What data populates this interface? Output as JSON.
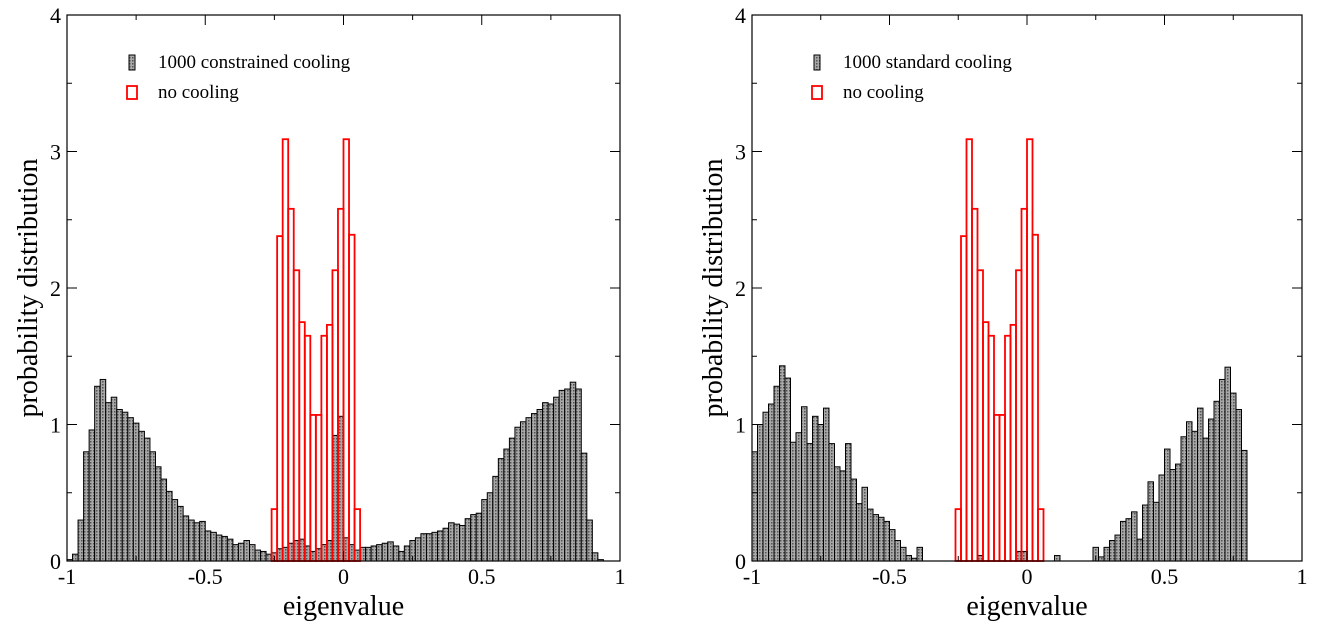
{
  "colors": {
    "cooled_fill": "#8c8c8c",
    "cooled_stroke": "#000000",
    "nocool_stroke": "#ff0000",
    "axis": "#000000"
  },
  "chart_data": [
    {
      "type": "bar",
      "xlabel": "eigenvalue",
      "ylabel": "probability distribution",
      "xlim": [
        -1,
        1
      ],
      "ylim": [
        0,
        4
      ],
      "xticks": [
        -1,
        -0.5,
        0,
        0.5,
        1
      ],
      "xtick_labels": [
        "-1",
        "-0.5",
        "0",
        "0.5",
        "1"
      ],
      "yticks": [
        0,
        1,
        2,
        3,
        4
      ],
      "ytick_labels": [
        "0",
        "1",
        "2",
        "3",
        "4"
      ],
      "bin_width": 0.02,
      "legend_position": "top-left",
      "series": [
        {
          "name": "1000  constrained cooling",
          "style": "filled",
          "x": [
            -0.99,
            -0.97,
            -0.95,
            -0.93,
            -0.91,
            -0.89,
            -0.87,
            -0.85,
            -0.83,
            -0.81,
            -0.79,
            -0.77,
            -0.75,
            -0.73,
            -0.71,
            -0.69,
            -0.67,
            -0.65,
            -0.63,
            -0.61,
            -0.59,
            -0.57,
            -0.55,
            -0.53,
            -0.51,
            -0.49,
            -0.47,
            -0.45,
            -0.43,
            -0.41,
            -0.39,
            -0.37,
            -0.35,
            -0.33,
            -0.31,
            -0.29,
            -0.27,
            -0.25,
            -0.23,
            -0.21,
            -0.19,
            -0.17,
            -0.15,
            -0.13,
            -0.11,
            -0.09,
            -0.07,
            -0.05,
            -0.03,
            -0.01,
            0.01,
            0.03,
            0.05,
            0.07,
            0.09,
            0.11,
            0.13,
            0.15,
            0.17,
            0.19,
            0.21,
            0.23,
            0.25,
            0.27,
            0.29,
            0.31,
            0.33,
            0.35,
            0.37,
            0.39,
            0.41,
            0.43,
            0.45,
            0.47,
            0.49,
            0.51,
            0.53,
            0.55,
            0.57,
            0.59,
            0.61,
            0.63,
            0.65,
            0.67,
            0.69,
            0.71,
            0.73,
            0.75,
            0.77,
            0.79,
            0.81,
            0.83,
            0.85,
            0.87,
            0.89,
            0.91,
            0.93,
            0.95,
            0.97,
            0.99
          ],
          "values": [
            0.01,
            0.05,
            0.3,
            0.8,
            0.96,
            1.28,
            1.33,
            1.16,
            1.2,
            1.11,
            1.09,
            1.05,
            1.01,
            0.95,
            0.9,
            0.8,
            0.69,
            0.6,
            0.51,
            0.45,
            0.4,
            0.33,
            0.3,
            0.28,
            0.29,
            0.22,
            0.21,
            0.19,
            0.18,
            0.16,
            0.12,
            0.13,
            0.15,
            0.12,
            0.08,
            0.07,
            0.05,
            0.06,
            0.09,
            0.1,
            0.13,
            0.15,
            0.16,
            0.11,
            0.07,
            0.09,
            0.12,
            0.15,
            0.92,
            1.06,
            0.17,
            0.12,
            0.08,
            0.1,
            0.1,
            0.11,
            0.12,
            0.13,
            0.14,
            0.11,
            0.07,
            0.11,
            0.15,
            0.17,
            0.2,
            0.2,
            0.21,
            0.22,
            0.24,
            0.28,
            0.27,
            0.26,
            0.31,
            0.34,
            0.35,
            0.45,
            0.5,
            0.62,
            0.75,
            0.82,
            0.9,
            0.98,
            1.02,
            1.05,
            1.08,
            1.11,
            1.16,
            1.15,
            1.2,
            1.25,
            1.26,
            1.31,
            1.26,
            0.79,
            0.3,
            0.06,
            0.01,
            0.0,
            0.0,
            0.0
          ]
        },
        {
          "name": "no cooling",
          "style": "outline",
          "x": [
            -0.27,
            -0.25,
            -0.23,
            -0.21,
            -0.19,
            -0.17,
            -0.15,
            -0.13,
            -0.11,
            -0.09,
            -0.07,
            -0.05,
            -0.03,
            -0.01,
            0.01,
            0.03,
            0.05,
            0.07,
            0.09,
            0.11,
            0.13,
            0.15,
            0.17,
            0.19,
            0.21,
            0.23,
            0.25,
            0.27
          ],
          "values": [
            0.0,
            0.38,
            2.38,
            3.09,
            2.58,
            2.13,
            1.75,
            1.65,
            1.07,
            1.07,
            1.65,
            1.73,
            2.13,
            2.58,
            3.09,
            2.39,
            0.38,
            0.0,
            0.0,
            0.0,
            0.0,
            0.0,
            0.0,
            0.0,
            0.0,
            0.0,
            0.0,
            0.0
          ]
        }
      ]
    },
    {
      "type": "bar",
      "xlabel": "eigenvalue",
      "ylabel": "probability distribution",
      "xlim": [
        -1,
        1
      ],
      "ylim": [
        0,
        4
      ],
      "xticks": [
        -1,
        -0.5,
        0,
        0.5,
        1
      ],
      "xtick_labels": [
        "-1",
        "-0.5",
        "0",
        "0.5",
        "1"
      ],
      "yticks": [
        0,
        1,
        2,
        3,
        4
      ],
      "ytick_labels": [
        "0",
        "1",
        "2",
        "3",
        "4"
      ],
      "bin_width": 0.02,
      "legend_position": "top-left",
      "series": [
        {
          "name": "1000  standard cooling",
          "style": "filled",
          "x": [
            -0.99,
            -0.97,
            -0.95,
            -0.93,
            -0.91,
            -0.89,
            -0.87,
            -0.85,
            -0.83,
            -0.81,
            -0.79,
            -0.77,
            -0.75,
            -0.73,
            -0.71,
            -0.69,
            -0.67,
            -0.65,
            -0.63,
            -0.61,
            -0.59,
            -0.57,
            -0.55,
            -0.53,
            -0.51,
            -0.49,
            -0.47,
            -0.45,
            -0.43,
            -0.41,
            -0.39,
            -0.37,
            -0.35,
            -0.33,
            -0.31,
            -0.29,
            -0.27,
            -0.25,
            -0.23,
            -0.21,
            -0.19,
            -0.17,
            -0.15,
            -0.13,
            -0.11,
            -0.09,
            -0.07,
            -0.05,
            -0.03,
            -0.01,
            0.01,
            0.03,
            0.05,
            0.07,
            0.09,
            0.11,
            0.13,
            0.15,
            0.17,
            0.19,
            0.21,
            0.23,
            0.25,
            0.27,
            0.29,
            0.31,
            0.33,
            0.35,
            0.37,
            0.39,
            0.41,
            0.43,
            0.45,
            0.47,
            0.49,
            0.51,
            0.53,
            0.55,
            0.57,
            0.59,
            0.61,
            0.63,
            0.65,
            0.67,
            0.69,
            0.71,
            0.73,
            0.75,
            0.77,
            0.79,
            0.81,
            0.83,
            0.85,
            0.87,
            0.89,
            0.91,
            0.93,
            0.95,
            0.97,
            0.99
          ],
          "values": [
            0.8,
            1.0,
            1.09,
            1.15,
            1.28,
            1.43,
            1.34,
            0.87,
            0.94,
            1.13,
            0.86,
            1.06,
            1.0,
            1.12,
            0.86,
            0.69,
            0.66,
            0.86,
            0.6,
            0.42,
            0.54,
            0.38,
            0.34,
            0.32,
            0.29,
            0.23,
            0.15,
            0.1,
            0.04,
            0.02,
            0.1,
            0.0,
            0.0,
            0.0,
            0.0,
            0.0,
            0.0,
            0.0,
            0.0,
            0.0,
            0.0,
            0.04,
            0.0,
            0.0,
            0.0,
            0.0,
            0.0,
            0.0,
            0.07,
            0.07,
            0.0,
            0.0,
            0.0,
            0.0,
            0.0,
            0.04,
            0.0,
            0.0,
            0.0,
            0.0,
            0.0,
            0.0,
            0.1,
            0.03,
            0.1,
            0.15,
            0.19,
            0.29,
            0.31,
            0.36,
            0.16,
            0.41,
            0.58,
            0.43,
            0.63,
            0.82,
            0.67,
            0.71,
            0.91,
            1.02,
            0.95,
            1.12,
            0.9,
            1.04,
            1.17,
            1.33,
            1.42,
            1.23,
            1.11,
            0.81,
            0.0,
            0.0,
            0.0,
            0.0,
            0.0,
            0.0,
            0.0,
            0.0,
            0.0,
            0.0
          ]
        },
        {
          "name": "no cooling",
          "style": "outline",
          "x": [
            -0.27,
            -0.25,
            -0.23,
            -0.21,
            -0.19,
            -0.17,
            -0.15,
            -0.13,
            -0.11,
            -0.09,
            -0.07,
            -0.05,
            -0.03,
            -0.01,
            0.01,
            0.03,
            0.05,
            0.07,
            0.09,
            0.11,
            0.13,
            0.15,
            0.17,
            0.19,
            0.21,
            0.23,
            0.25,
            0.27
          ],
          "values": [
            0.0,
            0.38,
            2.38,
            3.09,
            2.58,
            2.13,
            1.75,
            1.65,
            1.07,
            1.07,
            1.65,
            1.73,
            2.13,
            2.58,
            3.09,
            2.39,
            0.38,
            0.0,
            0.0,
            0.0,
            0.0,
            0.0,
            0.0,
            0.0,
            0.0,
            0.0,
            0.0,
            0.0
          ]
        }
      ]
    }
  ]
}
